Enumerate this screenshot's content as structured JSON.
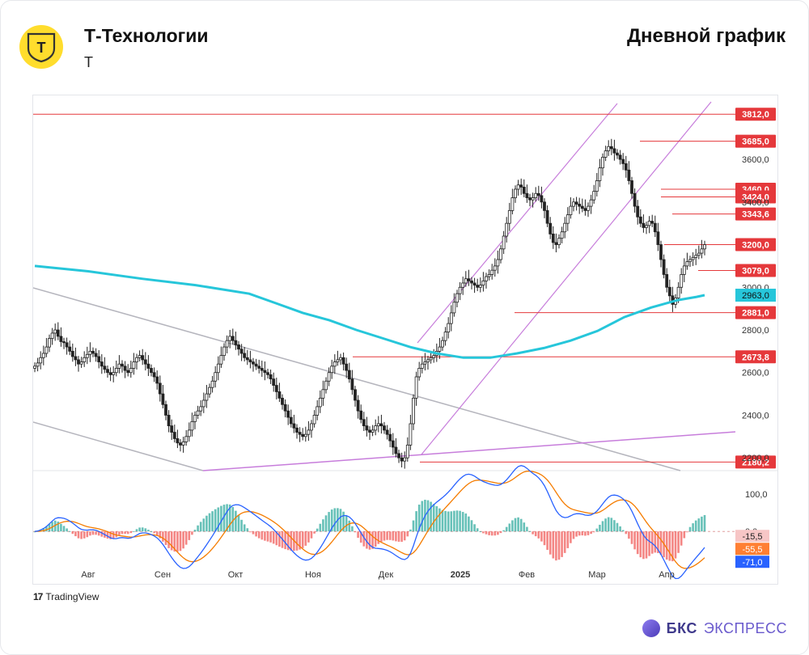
{
  "header": {
    "company": "Т-Технологии",
    "ticker": "T",
    "chart_type_label": "Дневной график",
    "logo_letter": "T"
  },
  "footer": {
    "tradingview": "TradingView",
    "brand_bold": "БКС",
    "brand_rest": "ЭКСПРЕСС"
  },
  "colors": {
    "up": "#089981",
    "down": "#222222",
    "ma": "#26c6da",
    "channel": "#c77ddb",
    "level": "#e5383b",
    "grey_trend": "#b5b5bd",
    "macd_line": "#2962ff",
    "signal_line": "#f57c00"
  },
  "chart_data": {
    "type": "candlestick",
    "price_axis": {
      "ticks": [
        "3600,0",
        "3400,0",
        "3000,0",
        "2800,0",
        "2600,0",
        "2400,0",
        "2200,0"
      ],
      "ylim": [
        2140,
        3900
      ]
    },
    "time_axis": [
      "Авг",
      "Сен",
      "Окт",
      "Ноя",
      "Дек",
      "2025",
      "Фев",
      "Мар",
      "Апр"
    ],
    "levels": [
      {
        "label": "3812,0",
        "value": 3812
      },
      {
        "label": "3685,0",
        "value": 3685
      },
      {
        "label": "3460,0",
        "value": 3460
      },
      {
        "label": "3424,0",
        "value": 3424
      },
      {
        "label": "3343,6",
        "value": 3343.6
      },
      {
        "label": "3200,0",
        "value": 3200
      },
      {
        "label": "3079,0",
        "value": 3079
      },
      {
        "label": "2881,0",
        "value": 2881
      },
      {
        "label": "2673,8",
        "value": 2673.8
      },
      {
        "label": "2180,2",
        "value": 2180.2
      }
    ],
    "moving_average": {
      "label": "2963,0",
      "last": 2963,
      "points": [
        [
          0,
          3100
        ],
        [
          20,
          3075
        ],
        [
          40,
          3040
        ],
        [
          60,
          3010
        ],
        [
          80,
          2970
        ],
        [
          90,
          2925
        ],
        [
          100,
          2880
        ],
        [
          110,
          2845
        ],
        [
          120,
          2800
        ],
        [
          130,
          2760
        ],
        [
          140,
          2720
        ],
        [
          150,
          2690
        ],
        [
          160,
          2670
        ],
        [
          170,
          2670
        ],
        [
          180,
          2690
        ],
        [
          190,
          2715
        ],
        [
          200,
          2750
        ],
        [
          210,
          2795
        ],
        [
          220,
          2860
        ],
        [
          230,
          2905
        ],
        [
          240,
          2940
        ],
        [
          247,
          2955
        ],
        [
          250,
          2963
        ]
      ]
    },
    "close": [
      2630,
      2645,
      2670,
      2690,
      2720,
      2760,
      2785,
      2800,
      2770,
      2745,
      2740,
      2720,
      2700,
      2675,
      2660,
      2640,
      2650,
      2670,
      2685,
      2700,
      2690,
      2675,
      2650,
      2630,
      2615,
      2600,
      2590,
      2600,
      2620,
      2640,
      2630,
      2610,
      2600,
      2620,
      2650,
      2670,
      2680,
      2660,
      2640,
      2620,
      2600,
      2580,
      2550,
      2500,
      2450,
      2400,
      2350,
      2320,
      2290,
      2270,
      2260,
      2275,
      2300,
      2330,
      2370,
      2400,
      2420,
      2440,
      2470,
      2500,
      2530,
      2560,
      2600,
      2640,
      2680,
      2720,
      2750,
      2770,
      2750,
      2730,
      2710,
      2690,
      2670,
      2660,
      2650,
      2640,
      2630,
      2620,
      2610,
      2600,
      2590,
      2570,
      2540,
      2510,
      2480,
      2450,
      2420,
      2390,
      2360,
      2340,
      2320,
      2310,
      2300,
      2310,
      2330,
      2360,
      2400,
      2440,
      2480,
      2520,
      2560,
      2600,
      2630,
      2650,
      2660,
      2670,
      2640,
      2610,
      2570,
      2520,
      2470,
      2420,
      2380,
      2350,
      2330,
      2320,
      2330,
      2350,
      2360,
      2350,
      2330,
      2310,
      2280,
      2250,
      2220,
      2200,
      2185,
      2200,
      2260,
      2360,
      2480,
      2580,
      2620,
      2640,
      2650,
      2660,
      2670,
      2680,
      2700,
      2720,
      2750,
      2790,
      2830,
      2880,
      2930,
      2970,
      3000,
      3020,
      3040,
      3030,
      3020,
      3010,
      3000,
      3010,
      3030,
      3050,
      3060,
      3080,
      3100,
      3130,
      3180,
      3240,
      3300,
      3360,
      3420,
      3460,
      3480,
      3470,
      3440,
      3420,
      3410,
      3420,
      3440,
      3430,
      3400,
      3360,
      3300,
      3250,
      3210,
      3200,
      3230,
      3260,
      3300,
      3340,
      3380,
      3400,
      3390,
      3380,
      3370,
      3360,
      3380,
      3410,
      3450,
      3500,
      3560,
      3610,
      3640,
      3660,
      3650,
      3630,
      3620,
      3600,
      3580,
      3550,
      3500,
      3440,
      3380,
      3330,
      3300,
      3280,
      3290,
      3310,
      3300,
      3260,
      3200,
      3130,
      3060,
      3000,
      2960,
      2920,
      2950,
      3000,
      3060,
      3100,
      3120,
      3130,
      3140,
      3150,
      3160,
      3180,
      3200
    ],
    "macd": {
      "labels": {
        "top": "100,0",
        "zero": "0,0",
        "hist": "-15,5",
        "signal": "-55,5",
        "macd": "-71,0"
      },
      "ylim": [
        -110,
        150
      ],
      "ticks": [
        100,
        0
      ]
    }
  }
}
